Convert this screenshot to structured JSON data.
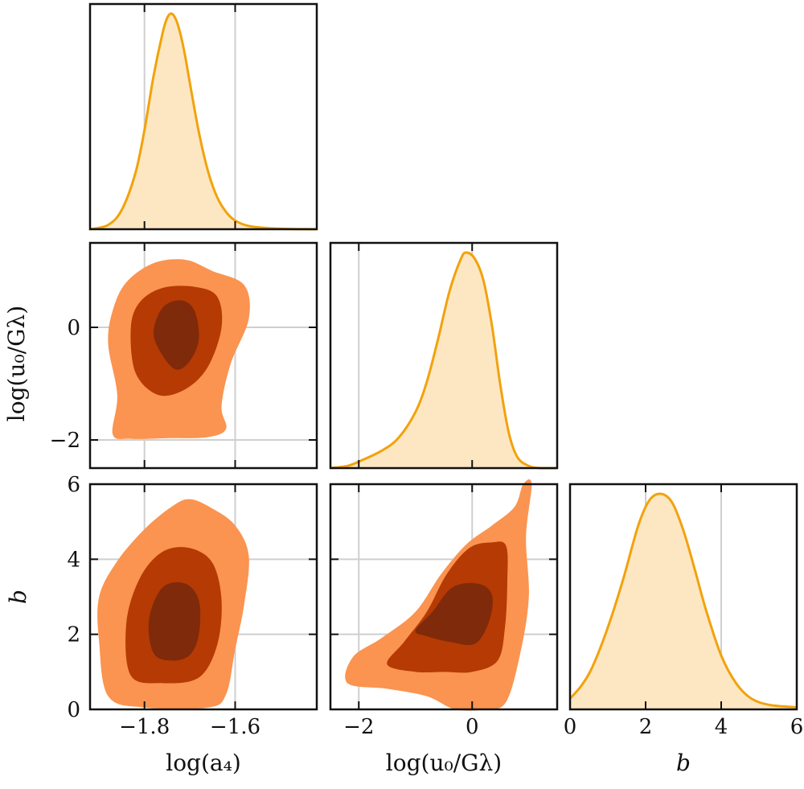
{
  "chart_data": {
    "type": "corner",
    "colors": {
      "line": "#f2a20c",
      "fill": "#fde7c3",
      "level_outer": "#fa9450",
      "level_mid": "#b53a04",
      "level_inner": "#7f2a0a",
      "grid": "#cfcfcf",
      "axis": "#111111"
    },
    "parameters": [
      {
        "id": "a4",
        "label": "log(a₄)",
        "range": [
          -1.92,
          -1.42
        ],
        "ticks": [
          -1.8,
          -1.6
        ],
        "tick_labels": [
          "−1.8",
          "−1.6"
        ]
      },
      {
        "id": "u0",
        "label": "log(u₀/Gλ)",
        "range": [
          -2.5,
          1.5
        ],
        "ticks": [
          -2,
          0
        ],
        "tick_labels": [
          "−2",
          "0"
        ]
      },
      {
        "id": "b",
        "label": "b",
        "range": [
          0,
          6
        ],
        "ticks": [
          0,
          2,
          4,
          6
        ],
        "tick_labels": [
          "0",
          "2",
          "4",
          "6"
        ]
      }
    ],
    "marginals": [
      {
        "param": "a4",
        "x": [
          -1.92,
          -1.88,
          -1.85,
          -1.82,
          -1.8,
          -1.78,
          -1.76,
          -1.75,
          -1.74,
          -1.73,
          -1.72,
          -1.71,
          -1.7,
          -1.68,
          -1.66,
          -1.64,
          -1.62,
          -1.6,
          -1.57,
          -1.52,
          -1.47,
          -1.42
        ],
        "density": [
          0.0,
          0.02,
          0.09,
          0.26,
          0.46,
          0.71,
          0.91,
          0.98,
          1.0,
          0.97,
          0.9,
          0.8,
          0.68,
          0.45,
          0.27,
          0.15,
          0.08,
          0.04,
          0.015,
          0.004,
          0.001,
          0.0
        ]
      },
      {
        "param": "u0",
        "x": [
          -2.5,
          -2.2,
          -2.0,
          -1.6,
          -1.3,
          -1.0,
          -0.8,
          -0.6,
          -0.4,
          -0.2,
          -0.1,
          0.05,
          0.2,
          0.35,
          0.5,
          0.65,
          0.8,
          1.0,
          1.2,
          1.5
        ],
        "density": [
          0.0,
          0.01,
          0.03,
          0.08,
          0.14,
          0.26,
          0.4,
          0.6,
          0.82,
          0.97,
          1.0,
          0.97,
          0.87,
          0.66,
          0.38,
          0.16,
          0.05,
          0.01,
          0.0,
          0.0
        ]
      },
      {
        "param": "b",
        "x": [
          0.0,
          0.3,
          0.6,
          1.0,
          1.4,
          1.8,
          2.1,
          2.4,
          2.7,
          3.0,
          3.3,
          3.6,
          4.0,
          4.4,
          4.8,
          5.3,
          6.0
        ],
        "density": [
          0.05,
          0.11,
          0.2,
          0.38,
          0.6,
          0.85,
          0.97,
          1.0,
          0.96,
          0.83,
          0.65,
          0.46,
          0.25,
          0.12,
          0.05,
          0.02,
          0.01
        ]
      }
    ],
    "joint": [
      {
        "x": "a4",
        "y": "u0",
        "levels": [
          [
            [
              -1.87,
              -1.9
            ],
            [
              -1.86,
              -1.2
            ],
            [
              -1.88,
              -0.3
            ],
            [
              -1.87,
              0.3
            ],
            [
              -1.84,
              0.8
            ],
            [
              -1.78,
              1.14
            ],
            [
              -1.71,
              1.2
            ],
            [
              -1.65,
              1.0
            ],
            [
              -1.58,
              0.75
            ],
            [
              -1.57,
              0.15
            ],
            [
              -1.61,
              -0.65
            ],
            [
              -1.63,
              -1.4
            ],
            [
              -1.62,
              -1.8
            ],
            [
              -1.66,
              -1.95
            ],
            [
              -1.75,
              -1.97
            ],
            [
              -1.83,
              -1.98
            ]
          ],
          [
            [
              -1.82,
              -0.8
            ],
            [
              -1.83,
              0.0
            ],
            [
              -1.81,
              0.45
            ],
            [
              -1.76,
              0.7
            ],
            [
              -1.69,
              0.72
            ],
            [
              -1.64,
              0.55
            ],
            [
              -1.63,
              0.0
            ],
            [
              -1.66,
              -0.7
            ],
            [
              -1.71,
              -1.1
            ],
            [
              -1.77,
              -1.2
            ]
          ],
          [
            [
              -1.76,
              -0.5
            ],
            [
              -1.78,
              -0.1
            ],
            [
              -1.76,
              0.35
            ],
            [
              -1.72,
              0.48
            ],
            [
              -1.69,
              0.3
            ],
            [
              -1.68,
              -0.2
            ],
            [
              -1.7,
              -0.6
            ],
            [
              -1.73,
              -0.75
            ]
          ]
        ]
      },
      {
        "x": "a4",
        "y": "b",
        "levels": [
          [
            [
              -1.88,
              0.35
            ],
            [
              -1.9,
              1.8
            ],
            [
              -1.9,
              3.0
            ],
            [
              -1.86,
              3.95
            ],
            [
              -1.8,
              4.8
            ],
            [
              -1.74,
              5.4
            ],
            [
              -1.7,
              5.6
            ],
            [
              -1.65,
              5.35
            ],
            [
              -1.6,
              4.9
            ],
            [
              -1.57,
              4.1
            ],
            [
              -1.58,
              2.8
            ],
            [
              -1.6,
              1.6
            ],
            [
              -1.62,
              0.4
            ],
            [
              -1.66,
              0.05
            ],
            [
              -1.8,
              0.05
            ]
          ],
          [
            [
              -1.83,
              0.9
            ],
            [
              -1.84,
              2.3
            ],
            [
              -1.81,
              3.5
            ],
            [
              -1.76,
              4.2
            ],
            [
              -1.7,
              4.3
            ],
            [
              -1.65,
              3.9
            ],
            [
              -1.63,
              2.9
            ],
            [
              -1.64,
              1.7
            ],
            [
              -1.68,
              0.85
            ],
            [
              -1.76,
              0.7
            ]
          ],
          [
            [
              -1.78,
              1.5
            ],
            [
              -1.79,
              2.4
            ],
            [
              -1.76,
              3.25
            ],
            [
              -1.71,
              3.35
            ],
            [
              -1.68,
              2.9
            ],
            [
              -1.68,
              2.0
            ],
            [
              -1.7,
              1.45
            ],
            [
              -1.74,
              1.3
            ]
          ]
        ]
      },
      {
        "x": "u0",
        "y": "b",
        "levels": [
          [
            [
              -2.2,
              0.7
            ],
            [
              -2.1,
              1.4
            ],
            [
              -1.6,
              1.9
            ],
            [
              -1.0,
              2.6
            ],
            [
              -0.55,
              3.6
            ],
            [
              -0.1,
              4.4
            ],
            [
              0.35,
              4.9
            ],
            [
              0.75,
              5.4
            ],
            [
              0.9,
              6.0
            ],
            [
              1.05,
              6.0
            ],
            [
              0.95,
              4.6
            ],
            [
              1.0,
              3.0
            ],
            [
              0.85,
              1.5
            ],
            [
              0.6,
              0.2
            ],
            [
              0.25,
              0.0
            ],
            [
              -0.3,
              0.0
            ],
            [
              -0.8,
              0.35
            ],
            [
              -1.5,
              0.55
            ]
          ],
          [
            [
              -1.5,
              1.2
            ],
            [
              -1.2,
              1.8
            ],
            [
              -0.8,
              2.6
            ],
            [
              -0.45,
              3.6
            ],
            [
              -0.05,
              4.3
            ],
            [
              0.35,
              4.45
            ],
            [
              0.6,
              4.35
            ],
            [
              0.62,
              3.4
            ],
            [
              0.58,
              2.2
            ],
            [
              0.45,
              1.3
            ],
            [
              0.0,
              1.0
            ],
            [
              -0.5,
              1.0
            ],
            [
              -1.0,
              1.0
            ]
          ],
          [
            [
              -1.0,
              2.1
            ],
            [
              -0.7,
              2.6
            ],
            [
              -0.35,
              3.25
            ],
            [
              0.1,
              3.35
            ],
            [
              0.35,
              3.05
            ],
            [
              0.3,
              2.35
            ],
            [
              0.05,
              1.75
            ],
            [
              -0.4,
              1.8
            ],
            [
              -0.8,
              1.95
            ]
          ]
        ]
      }
    ]
  }
}
